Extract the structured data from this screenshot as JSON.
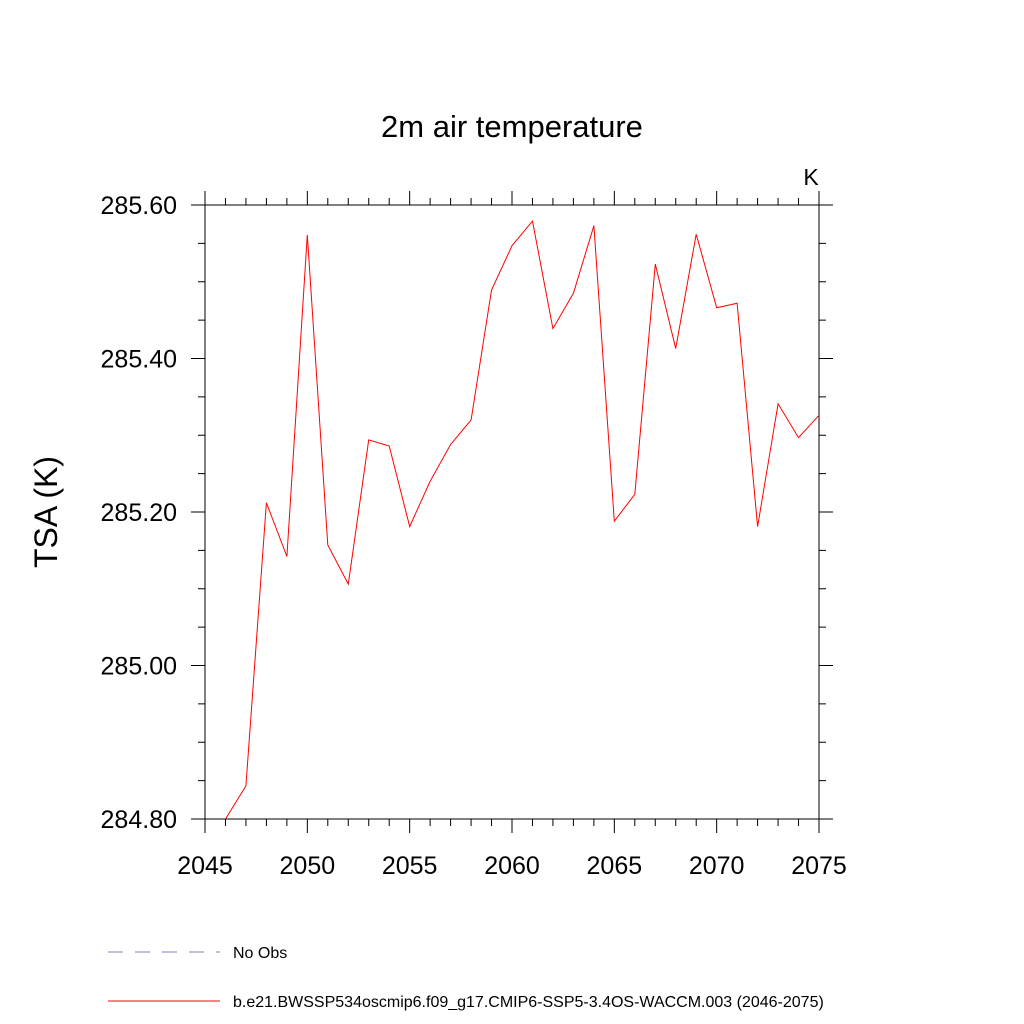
{
  "chart_data": {
    "type": "line",
    "title": "2m air temperature",
    "units_label": "K",
    "ylabel": "TSA  (K)",
    "xlabel": "",
    "xlim": [
      2045,
      2075
    ],
    "ylim": [
      284.8,
      285.6
    ],
    "x_ticks": [
      2045,
      2050,
      2055,
      2060,
      2065,
      2070,
      2075
    ],
    "x_tick_labels": [
      "2045",
      "2050",
      "2055",
      "2060",
      "2065",
      "2070",
      "2075"
    ],
    "x_minor_step": 1,
    "y_ticks": [
      284.8,
      285.0,
      285.2,
      285.4,
      285.6
    ],
    "y_tick_labels": [
      "284.80",
      "285.00",
      "285.20",
      "285.40",
      "285.60"
    ],
    "y_minor_step": 0.05,
    "grid": false,
    "series": [
      {
        "name": "b.e21.BWSSP534oscmip6.f09_g17.CMIP6-SSP5-3.4OS-WACCM.003 (2046-2075)",
        "color": "#ff0000",
        "dash": "solid",
        "x": [
          2046,
          2047,
          2048,
          2049,
          2050,
          2051,
          2052,
          2053,
          2054,
          2055,
          2056,
          2057,
          2058,
          2059,
          2060,
          2061,
          2062,
          2063,
          2064,
          2065,
          2066,
          2067,
          2068,
          2069,
          2070,
          2071,
          2072,
          2073,
          2074,
          2075
        ],
        "values": [
          284.8,
          284.843,
          285.212,
          285.142,
          285.561,
          285.157,
          285.106,
          285.294,
          285.286,
          285.181,
          285.24,
          285.288,
          285.32,
          285.489,
          285.547,
          285.579,
          285.439,
          285.485,
          285.573,
          285.188,
          285.223,
          285.523,
          285.413,
          285.562,
          285.466,
          285.472,
          285.181,
          285.341,
          285.297,
          285.326
        ]
      }
    ],
    "legend": [
      {
        "label": "No Obs",
        "color": "#7f7fbf",
        "dash": "dashed"
      },
      {
        "label": "b.e21.BWSSP534oscmip6.f09_g17.CMIP6-SSP5-3.4OS-WACCM.003 (2046-2075)",
        "color": "#ff0000",
        "dash": "solid"
      }
    ],
    "legend_position": "bottom-left"
  }
}
